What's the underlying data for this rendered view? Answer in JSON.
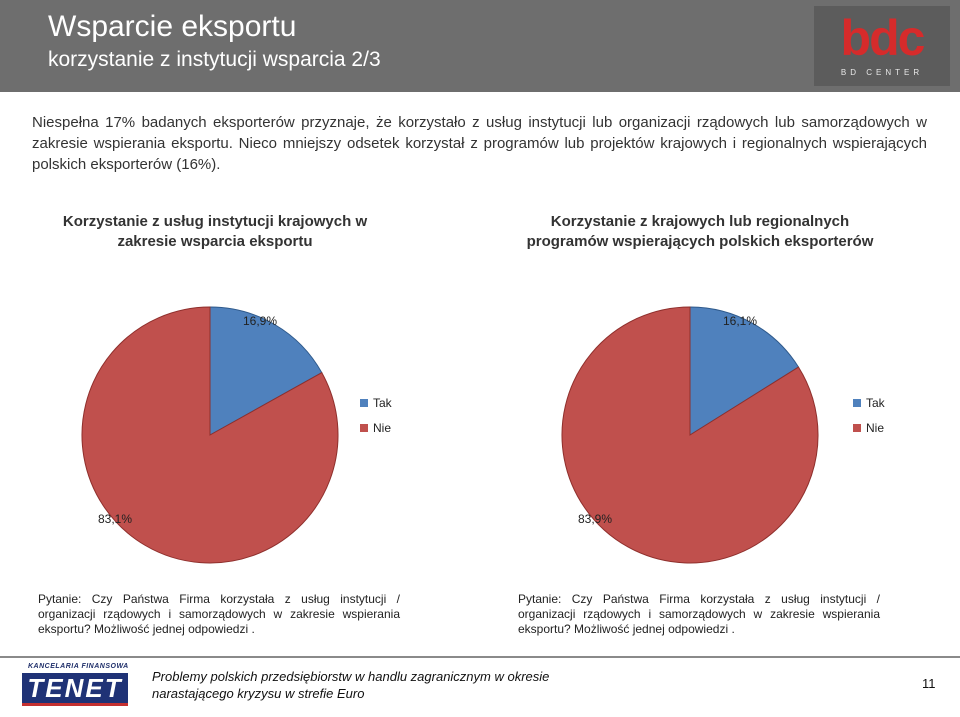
{
  "header": {
    "title": "Wsparcie eksportu",
    "subtitle": "korzystanie z instytucji wsparcia 2/3",
    "logo_text": "bdc",
    "logo_subtext": "BD CENTER"
  },
  "intro_text": "Niespełna 17% badanych eksporterów przyznaje, że korzystało z usług instytucji lub organizacji rządowych lub samorządowych w zakresie wspierania eksportu. Nieco mniejszy odsetek korzystał z programów lub projektów krajowych i regionalnych wspierających polskich eksporterów (16%).",
  "colors": {
    "tak": "#4f81bd",
    "nie": "#c0504d"
  },
  "chart_data": [
    {
      "type": "pie",
      "title": "Korzystanie z usług instytucji krajowych w zakresie wsparcia eksportu",
      "categories": [
        "Tak",
        "Nie"
      ],
      "values": [
        16.9,
        83.1
      ],
      "labels": [
        "16,9%",
        "83,1%"
      ],
      "legend": "right",
      "note": "Pytanie: Czy Państwa Firma korzystała z usług instytucji / organizacji rządowych i samorządowych w zakresie wspierania eksportu? Możliwość jednej odpowiedzi ."
    },
    {
      "type": "pie",
      "title": "Korzystanie z krajowych lub regionalnych programów wspierających polskich eksporterów",
      "categories": [
        "Tak",
        "Nie"
      ],
      "values": [
        16.1,
        83.9
      ],
      "labels": [
        "16,1%",
        "83,9%"
      ],
      "legend": "right",
      "note": "Pytanie: Czy Państwa Firma korzystała z usług instytucji / organizacji rządowych i samorządowych w zakresie wspierania eksportu? Możliwość jednej odpowiedzi ."
    }
  ],
  "footer": {
    "logo_top": "KANCELARIA FINANSOWA",
    "logo_word": "TENET",
    "text_line1": "Problemy polskich przedsiębiorstw w handlu zagranicznym w okresie",
    "text_line2": "narastającego kryzysu w strefie Euro",
    "page_number": "11"
  }
}
